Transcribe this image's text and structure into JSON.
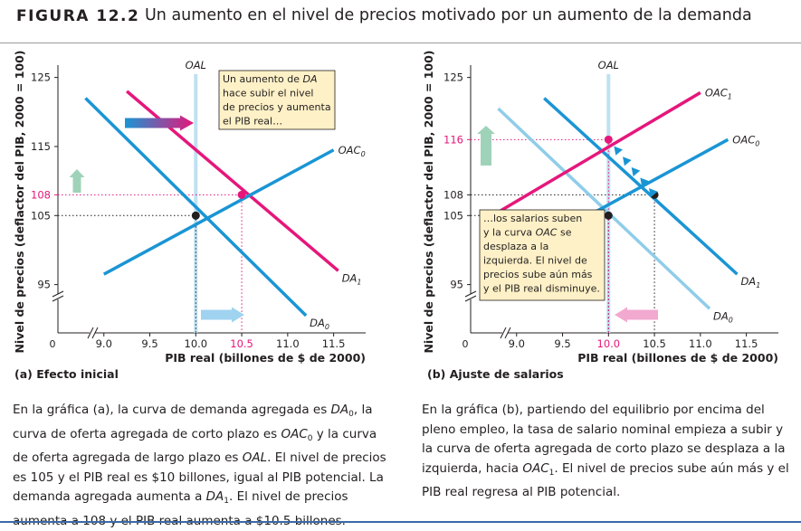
{
  "header": {
    "figure_label": "FIGURA  12.2",
    "title": "Un aumento en el nivel de precios motivado por un aumento de la demanda"
  },
  "colors": {
    "ad_blue": "#1a95d4",
    "light_blue": "#8fcde9",
    "magenta": "#e5177b",
    "oal_blue": "#bfe1f1",
    "note_fill": "#fef1c7",
    "up_arrow_green": "#9fd3b9",
    "right_arrow_blue": "#9fd3f0",
    "left_arrow_pink": "#f2a9cf"
  },
  "chart_data": [
    {
      "type": "line",
      "panel_label": "(a) Efecto inicial",
      "ylabel": "Nivel de precios (deflactor del PIB, 2000 = 100)",
      "xlabel": "PIB real (billones de $ de 2000)",
      "origin_label": "0",
      "x_ticks": [
        "9.0",
        "9.5",
        "10.0",
        "10.5",
        "11.0",
        "11.5"
      ],
      "x_tick_values": [
        9.0,
        9.5,
        10.0,
        10.5,
        11.0,
        11.5
      ],
      "y_ticks": [
        "95",
        "105",
        "108",
        "115",
        "125"
      ],
      "y_tick_values": [
        95,
        105,
        108,
        115,
        125
      ],
      "highlight_x_tick": "10.5",
      "highlight_y_tick": "108",
      "xlim": [
        8.5,
        11.75
      ],
      "ylim": [
        88,
        126
      ],
      "axis_breaks": true,
      "series": [
        {
          "name": "DA",
          "sub": "0",
          "color": "#1a95d4",
          "x": [
            8.8,
            11.2
          ],
          "y": [
            122,
            90.5
          ]
        },
        {
          "name": "DA",
          "sub": "1",
          "color": "#e5177b",
          "x": [
            9.25,
            11.55
          ],
          "y": [
            123,
            97
          ]
        },
        {
          "name": "OAC",
          "sub": "0",
          "color": "#1a95d4",
          "x": [
            9.0,
            11.5
          ],
          "y": [
            96.5,
            114.5
          ]
        },
        {
          "name": "OAL",
          "sub": "",
          "color": "#bfe1f1",
          "x": [
            10.0,
            10.0
          ],
          "y": [
            88,
            125.5
          ]
        }
      ],
      "points": [
        {
          "x": 10.0,
          "y": 105
        },
        {
          "x": 10.5,
          "y": 108
        }
      ],
      "dotted_guides": [
        {
          "x": 10.0,
          "y": 105,
          "color": "#231f20"
        },
        {
          "x": 10.5,
          "y": 108,
          "color": "#e5177b"
        }
      ],
      "annotation": [
        "Un aumento de DA",
        "hace subir el nivel",
        "de precios y aumenta",
        "el PIB real…"
      ],
      "arrows": [
        "demand-right",
        "price-up",
        "gdp-right"
      ]
    },
    {
      "type": "line",
      "panel_label": "(b) Ajuste de salarios",
      "ylabel": "Nivel de precios (deflactor del PIB, 2000 = 100)",
      "xlabel": "PIB real (billones de $ de 2000)",
      "origin_label": "0",
      "x_ticks": [
        "9.0",
        "9.5",
        "10.0",
        "10.5",
        "11.0",
        "11.5"
      ],
      "x_tick_values": [
        9.0,
        9.5,
        10.0,
        10.5,
        11.0,
        11.5
      ],
      "y_ticks": [
        "95",
        "105",
        "108",
        "116",
        "125"
      ],
      "y_tick_values": [
        95,
        105,
        108,
        116,
        125
      ],
      "highlight_x_tick": "10.0",
      "highlight_y_tick": "116",
      "xlim": [
        8.5,
        11.75
      ],
      "ylim": [
        88,
        126
      ],
      "axis_breaks": true,
      "series": [
        {
          "name": "DA",
          "sub": "0",
          "color": "#8fcde9",
          "x": [
            8.8,
            11.1
          ],
          "y": [
            120.5,
            91.5
          ]
        },
        {
          "name": "DA",
          "sub": "1",
          "color": "#1a95d4",
          "x": [
            9.3,
            11.4
          ],
          "y": [
            122,
            96.5
          ]
        },
        {
          "name": "OAC",
          "sub": "0",
          "color": "#1a95d4",
          "x": [
            9.3,
            11.3
          ],
          "y": [
            101.5,
            116
          ]
        },
        {
          "name": "OAC",
          "sub": "1",
          "color": "#e5177b",
          "x": [
            8.8,
            11.0
          ],
          "y": [
            105.5,
            122.8
          ]
        },
        {
          "name": "OAL",
          "sub": "",
          "color": "#bfe1f1",
          "x": [
            10.0,
            10.0
          ],
          "y": [
            88,
            125.5
          ]
        }
      ],
      "points": [
        {
          "x": 10.0,
          "y": 105
        },
        {
          "x": 10.5,
          "y": 108
        },
        {
          "x": 10.0,
          "y": 116
        }
      ],
      "dotted_guides": [
        {
          "x": 10.0,
          "y": 105,
          "color": "#231f20"
        },
        {
          "x": 10.5,
          "y": 108,
          "color": "#231f20"
        },
        {
          "x": 10.0,
          "y": 116,
          "color": "#e5177b"
        }
      ],
      "annotation": [
        "…los salarios suben",
        "y la curva OAC se",
        "desplaza a la",
        "izquierda. El nivel de",
        "precios sube aún más",
        "y el PIB real disminuye."
      ],
      "arrows": [
        "path-up-left",
        "price-up",
        "gdp-left"
      ]
    }
  ],
  "captions": {
    "a": {
      "p1": "En la gráfica (a), la curva de demanda agregada es ",
      "da0": "DA",
      "da0_sub": "0",
      "p2": ", la curva de oferta agregada de corto plazo es ",
      "oac0": "OAC",
      "oac0_sub": "0",
      "p3": " y la curva de oferta agregada de largo plazo es ",
      "oal": "OAL",
      "p4": ". El nivel de precios es 105 y el PIB real es $10 billones, igual al PIB potencial. La demanda agregada aumenta a ",
      "da1": "DA",
      "da1_sub": "1",
      "p5": ". El nivel de precios aumenta a 108 y el PIB real aumenta a $10.5 billones."
    },
    "b": {
      "p1": "En la gráfica (b), partiendo del equilibrio por encima del pleno empleo, la tasa de salario nominal empieza a subir y la curva de oferta agregada de corto plazo se desplaza a la izquierda, hacia ",
      "oac1": "OAC",
      "oac1_sub": "1",
      "p2": ". El nivel de precios sube aún más y el PIB real regresa al PIB potencial."
    }
  }
}
